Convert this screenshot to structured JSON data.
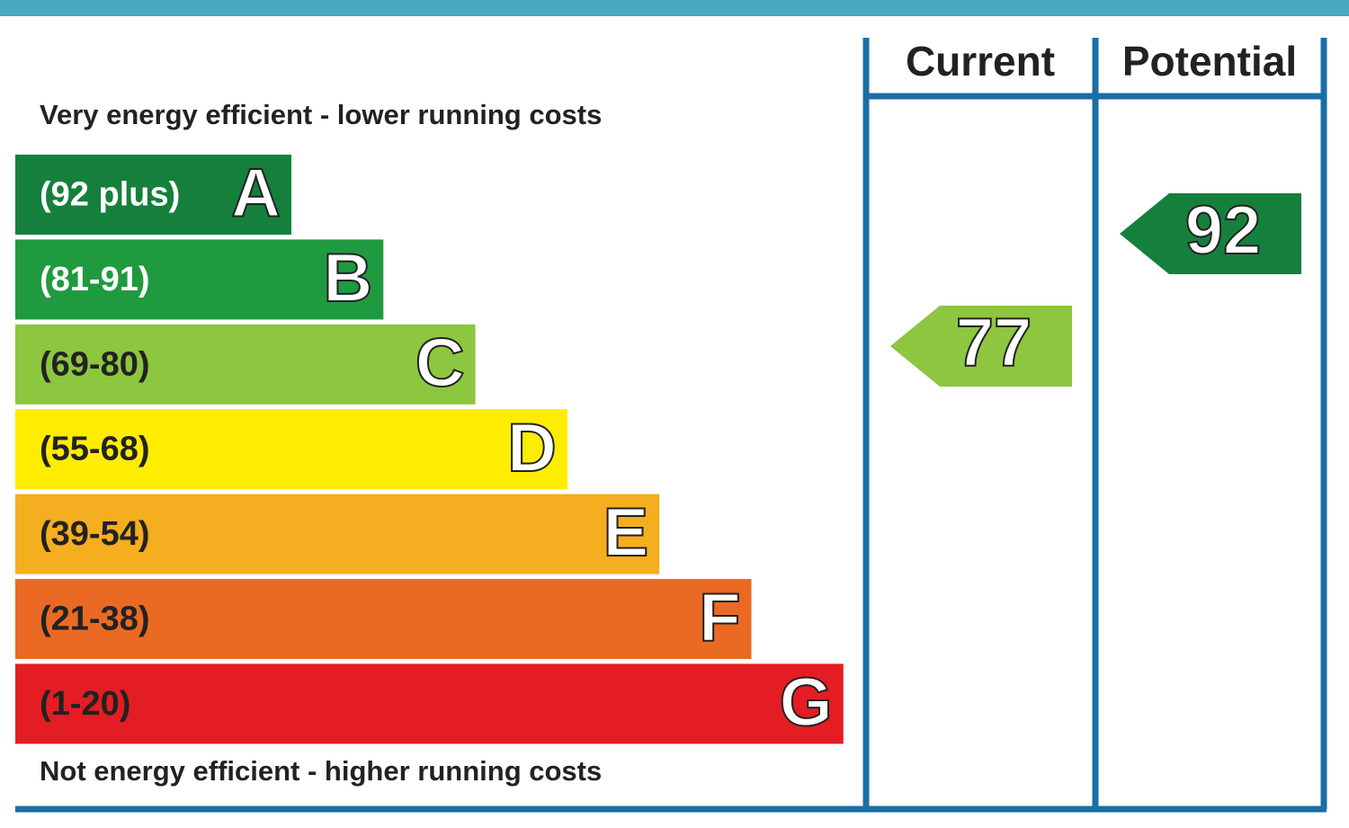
{
  "chart_data": {
    "type": "epc",
    "top_label": "Very energy efficient - lower running costs",
    "bottom_label": "Not energy efficient - higher running costs",
    "bands": [
      {
        "range": "(92 plus)",
        "letter": "A",
        "color": "#14803c"
      },
      {
        "range": "(81-91)",
        "letter": "B",
        "color": "#1f9a3f"
      },
      {
        "range": "(69-80)",
        "letter": "C",
        "color": "#8dc63f"
      },
      {
        "range": "(55-68)",
        "letter": "D",
        "color": "#ffed00"
      },
      {
        "range": "(39-54)",
        "letter": "E",
        "color": "#f5ae1f"
      },
      {
        "range": "(21-38)",
        "letter": "F",
        "color": "#ea6a24"
      },
      {
        "range": "(1-20)",
        "letter": "G",
        "color": "#e31d23"
      }
    ],
    "series": [
      {
        "name": "Current",
        "values": [
          77
        ],
        "color": "#8dc63f"
      },
      {
        "name": "Potential",
        "values": [
          92
        ],
        "color": "#14803c"
      }
    ]
  }
}
